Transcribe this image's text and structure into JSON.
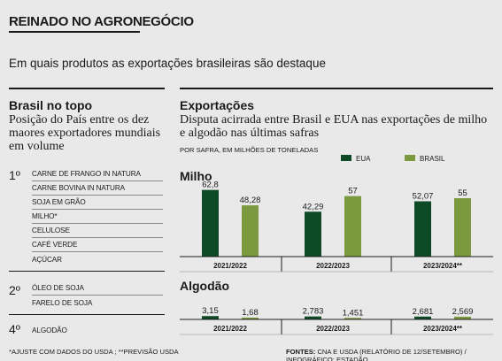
{
  "header": {
    "title": "REINADO NO AGRONEGÓCIO",
    "subtitle": "Em quais produtos as exportações brasileiras são destaque"
  },
  "left": {
    "heading": "Brasil no topo",
    "description": "Posição do País entre os dez maores exportadores mundiais em volume",
    "groups": [
      {
        "rank": "1º",
        "items": [
          "CARNE DE FRANGO IN NATURA",
          "CARNE BOVINA IN NATURA",
          "SOJA EM GRÃO",
          "MILHO*",
          "CELULOSE",
          "CAFÉ VERDE",
          "AÇÚCAR"
        ]
      },
      {
        "rank": "2º",
        "items": [
          "ÓLEO DE SOJA",
          "FARELO DE SOJA"
        ]
      },
      {
        "rank": "4º",
        "items": [
          "ALGODÃO"
        ]
      }
    ]
  },
  "right": {
    "heading": "Exportações",
    "description": "Disputa acirrada entre Brasil e EUA nas exportações de milho e algodão nas últimas safras",
    "unit_note": "POR SAFRA, EM MILHÕES DE TONELADAS"
  },
  "colors": {
    "eua": "#0f4a26",
    "brasil": "#7b9a3f",
    "bg": "#e9e9e9"
  },
  "chart_data": [
    {
      "type": "bar",
      "title": "Milho",
      "categories": [
        "2021/2022",
        "2022/2023",
        "2023/2024**"
      ],
      "series": [
        {
          "name": "EUA",
          "values": [
            62.8,
            42.29,
            52.07
          ],
          "labels": [
            "62,8",
            "42,29",
            "52,07"
          ]
        },
        {
          "name": "BRASIL",
          "values": [
            48.28,
            57,
            55
          ],
          "labels": [
            "48,28",
            "57",
            "55"
          ]
        }
      ],
      "ylim": [
        0,
        70
      ],
      "grid": false,
      "legend": "top-right"
    },
    {
      "type": "bar",
      "title": "Algodão",
      "categories": [
        "2021/2022",
        "2022/2023",
        "2023/2024**"
      ],
      "series": [
        {
          "name": "EUA",
          "values": [
            3.15,
            2.783,
            2.681
          ],
          "labels": [
            "3,15",
            "2,783",
            "2,681"
          ]
        },
        {
          "name": "BRASIL",
          "values": [
            1.68,
            1.451,
            2.569
          ],
          "labels": [
            "1,68",
            "1,451",
            "2,569"
          ]
        }
      ],
      "ylim": [
        0,
        70
      ],
      "grid": false
    }
  ],
  "footer": {
    "note": "*AJUSTE COM DADOS DO USDA ; **PREVISÃO USDA",
    "sources_label": "FONTES:",
    "sources": "CNA E USDA (RELATÓRIO DE 12/SETEMBRO) / INFOGRÁFICO: ESTADÃO"
  }
}
